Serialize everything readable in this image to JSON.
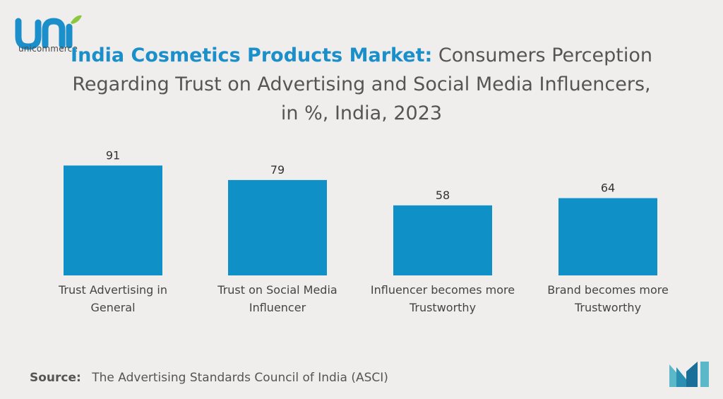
{
  "header": {
    "title_strong": "India Cosmetics Products Market:",
    "title_rest": "Consumers Perception Regarding Trust on Advertising and Social Media Influencers, in %, India, 2023"
  },
  "logo": {
    "text": "unicommerce"
  },
  "source": {
    "label": "Source:",
    "text": "The Advertising Standards Council of India (ASCI)"
  },
  "colors": {
    "bar": "#0f91c7",
    "title_accent": "#1a8fca",
    "text": "#555555",
    "background": "#efeeed"
  },
  "chart_data": {
    "type": "bar",
    "categories": [
      [
        "Trust Advertising in",
        "General"
      ],
      [
        "Trust on Social Media",
        "Influencer"
      ],
      [
        "Influencer becomes more",
        "Trustworthy"
      ],
      [
        "Brand becomes more",
        "Trustworthy"
      ]
    ],
    "values": [
      91,
      79,
      58,
      64
    ],
    "value_labels": [
      "91",
      "79",
      "58",
      "64"
    ],
    "grid": false,
    "legend": "none"
  }
}
